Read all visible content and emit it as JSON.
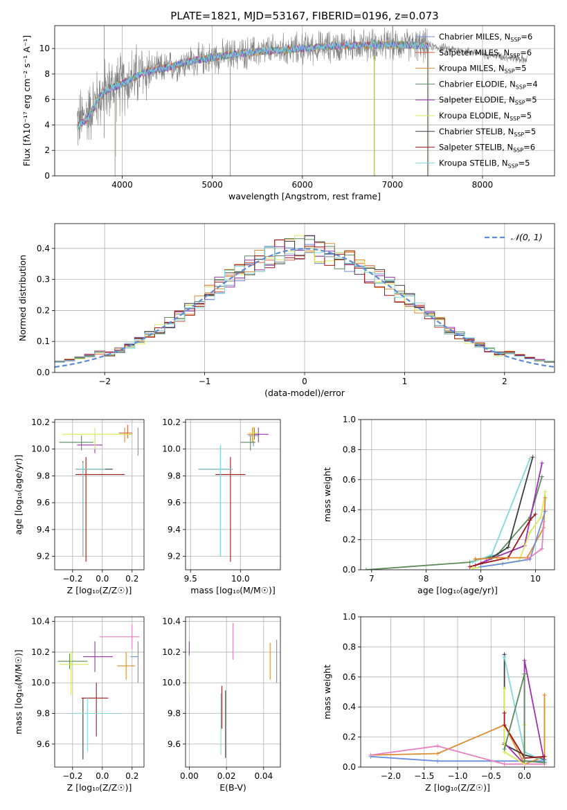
{
  "colors": {
    "chab_miles": "#6a8ddc",
    "salp_miles": "#e15a3c",
    "krou_miles": "#de8c2e",
    "chab_elodie": "#5a8a5a",
    "salp_elodie": "#9b30b0",
    "krou_elodie": "#d8e85a",
    "chab_stelib": "#3c3c3c",
    "salp_stelib": "#a01414",
    "krou_stelib": "#80d8d8",
    "pink": "#e87fbf",
    "gray": "#808080",
    "normal": "#5b8ad8"
  },
  "chart_data": [
    {
      "id": "spectrum",
      "type": "line",
      "title": "PLATE=1821, MJD=53167, FIBERID=0196, z=0.073",
      "xlabel": "wavelength [Angstrom, rest frame]",
      "ylabel": "Flux [fλ10⁻¹⁷ erg cm⁻² s⁻¹ A⁻¹]",
      "xlim": [
        3250,
        8800
      ],
      "ylim": [
        0,
        11.8
      ],
      "xticks": [
        4000,
        5000,
        6000,
        7000,
        8000
      ],
      "yticks": [
        0,
        2,
        4,
        6,
        8,
        10
      ],
      "legend_position": "top-right",
      "legend": [
        {
          "label": "Chabrier MILES, N",
          "sub": "SSP",
          "val": "=6",
          "color": "chab_miles"
        },
        {
          "label": "Salpeter MILES, N",
          "sub": "SSP",
          "val": "=6",
          "color": "salp_miles"
        },
        {
          "label": "Kroupa MILES, N",
          "sub": "SSP",
          "val": "=5",
          "color": "krou_miles"
        },
        {
          "label": "Chabrier ELODIE, N",
          "sub": "SSP",
          "val": "=4",
          "color": "chab_elodie"
        },
        {
          "label": "Salpeter ELODIE, N",
          "sub": "SSP",
          "val": "=5",
          "color": "salp_elodie"
        },
        {
          "label": "Kroupa ELODIE, N",
          "sub": "SSP",
          "val": "=5",
          "color": "krou_elodie"
        },
        {
          "label": "Chabrier STELIB, N",
          "sub": "SSP",
          "val": "=5",
          "color": "chab_stelib"
        },
        {
          "label": "Salpeter STELIB, N",
          "sub": "SSP",
          "val": "=6",
          "color": "salp_stelib"
        },
        {
          "label": "Kroupa STELIB, N",
          "sub": "SSP",
          "val": "=5",
          "color": "krou_stelib"
        }
      ],
      "continuum": {
        "x": [
          3500,
          3600,
          3700,
          3800,
          3900,
          4000,
          4100,
          4200,
          4300,
          4500,
          4700,
          5000,
          5300,
          5600,
          6000,
          6400,
          6800,
          7200,
          7400,
          7600,
          8000,
          8500
        ],
        "y": [
          4.2,
          4.7,
          5.8,
          6.6,
          7.0,
          7.2,
          7.6,
          8.0,
          8.2,
          8.5,
          8.9,
          9.3,
          9.6,
          9.8,
          10.0,
          10.2,
          10.3,
          10.3,
          10.2,
          10.0,
          9.6,
          9.1
        ]
      },
      "model_range": [
        3500,
        7400
      ],
      "data_range": [
        3500,
        8500
      ],
      "spikes": [
        {
          "x": 3800,
          "ymax": 11.8,
          "ymin": 3.0
        },
        {
          "x": 3920,
          "ymax": 6.5,
          "ymin": 0.0
        },
        {
          "x": 5200,
          "ymax": 9.6,
          "ymin": 0.0
        },
        {
          "x": 6800,
          "ymax": 9.9,
          "ymin": 0.0
        },
        {
          "x": 7400,
          "ymax": 10.2,
          "ymin": 0.0
        }
      ]
    },
    {
      "id": "residuals",
      "type": "histogram",
      "xlabel": "(data-model)/error",
      "ylabel": "Normed distribution",
      "xlim": [
        -2.5,
        2.5
      ],
      "ylim": [
        0,
        0.48
      ],
      "xticks": [
        -2,
        -1,
        0,
        1,
        2
      ],
      "yticks": [
        0.0,
        0.1,
        0.2,
        0.3,
        0.4
      ],
      "legend": "𝒩(0, 1)",
      "legend_position": "top-right",
      "bin_width": 0.1,
      "normal": {
        "mean": 0.0,
        "sigma": 1.0
      },
      "series_colors": [
        "chab_miles",
        "salp_miles",
        "krou_miles",
        "chab_elodie",
        "salp_elodie",
        "krou_elodie",
        "chab_stelib",
        "salp_stelib",
        "krou_stelib"
      ]
    },
    {
      "id": "age_vs_Z",
      "type": "errorbar",
      "xlabel": "Z [log₁₀(Z/Z☉)]",
      "ylabel": "age  [log₁₀(age/yr)]",
      "xlim": [
        -0.32,
        0.28
      ],
      "ylim": [
        9.1,
        10.22
      ],
      "xticks": [
        -0.2,
        0.0,
        0.2
      ],
      "yticks": [
        9.2,
        9.4,
        9.6,
        9.8,
        10.0,
        10.2
      ],
      "points": [
        {
          "x": 0.24,
          "xe": [
            0.0,
            0.0
          ],
          "y": 10.1,
          "ye": [
            0.15,
            0.06
          ],
          "c": "chab_miles"
        },
        {
          "x": 0.17,
          "xe": [
            0.06,
            0.03
          ],
          "y": 10.12,
          "ye": [
            0.04,
            0.06
          ],
          "c": "salp_miles"
        },
        {
          "x": 0.15,
          "xe": [
            0.03,
            0.05
          ],
          "y": 10.11,
          "ye": [
            0.06,
            0.05
          ],
          "c": "krou_miles"
        },
        {
          "x": -0.14,
          "xe": [
            0.15,
            0.08
          ],
          "y": 10.05,
          "ye": [
            0.06,
            0.05
          ],
          "c": "chab_elodie"
        },
        {
          "x": -0.05,
          "xe": [
            0.12,
            0.05
          ],
          "y": 10.03,
          "ye": [
            0.06,
            0.08
          ],
          "c": "salp_elodie"
        },
        {
          "x": -0.05,
          "xe": [
            0.22,
            0.25
          ],
          "y": 10.11,
          "ye": [
            0.11,
            0.05
          ],
          "c": "krou_elodie"
        },
        {
          "x": -0.13,
          "xe": [
            0.05,
            0.2
          ],
          "y": 9.85,
          "ye": [
            0.65,
            0.06
          ],
          "c": "chab_stelib"
        },
        {
          "x": -0.11,
          "xe": [
            0.07,
            0.26
          ],
          "y": 9.81,
          "ye": [
            0.65,
            0.13
          ],
          "c": "salp_stelib"
        },
        {
          "x": -0.13,
          "xe": [
            0.05,
            0.15
          ],
          "y": 9.85,
          "ye": [
            0.65,
            0.05
          ],
          "c": "krou_stelib"
        }
      ]
    },
    {
      "id": "age_vs_mass",
      "type": "errorbar",
      "xlabel": "mass [log₁₀(M/M☉)]",
      "ylabel": "",
      "xlim": [
        9.45,
        10.4
      ],
      "ylim": [
        9.1,
        10.22
      ],
      "xticks": [
        9.5,
        10.0
      ],
      "yticks": [
        9.2,
        9.4,
        9.6,
        9.8,
        10.0,
        10.2
      ],
      "points": [
        {
          "x": 10.13,
          "xe": [
            0.05,
            0.05
          ],
          "y": 10.1,
          "ye": [
            0.08,
            0.06
          ],
          "c": "chab_miles"
        },
        {
          "x": 10.14,
          "xe": [
            0.05,
            0.05
          ],
          "y": 10.11,
          "ye": [
            0.04,
            0.05
          ],
          "c": "salp_miles"
        },
        {
          "x": 10.12,
          "xe": [
            0.05,
            0.05
          ],
          "y": 10.11,
          "ye": [
            0.06,
            0.05
          ],
          "c": "krou_miles"
        },
        {
          "x": 10.1,
          "xe": [
            0.1,
            0.05
          ],
          "y": 10.05,
          "ye": [
            0.06,
            0.05
          ],
          "c": "chab_elodie"
        },
        {
          "x": 10.18,
          "xe": [
            0.05,
            0.1
          ],
          "y": 10.11,
          "ye": [
            0.06,
            0.05
          ],
          "c": "salp_elodie"
        },
        {
          "x": 10.13,
          "xe": [
            0.05,
            0.05
          ],
          "y": 10.12,
          "ye": [
            0.06,
            0.05
          ],
          "c": "krou_elodie"
        },
        {
          "x": 9.8,
          "xe": [
            0.22,
            0.12
          ],
          "y": 9.85,
          "ye": [
            0.65,
            0.18
          ],
          "c": "chab_stelib"
        },
        {
          "x": 9.9,
          "xe": [
            0.15,
            0.15
          ],
          "y": 9.81,
          "ye": [
            0.65,
            0.13
          ],
          "c": "salp_stelib"
        },
        {
          "x": 9.8,
          "xe": [
            0.22,
            0.12
          ],
          "y": 9.85,
          "ye": [
            0.65,
            0.18
          ],
          "c": "krou_stelib"
        }
      ]
    },
    {
      "id": "mw_vs_age",
      "type": "line",
      "xlabel": "age  [log₁₀(age/yr)]",
      "ylabel": "mass weight",
      "xlim": [
        6.8,
        10.35
      ],
      "ylim": [
        0,
        1.0
      ],
      "xticks": [
        7,
        8,
        9,
        10
      ],
      "yticks": [
        0.0,
        0.2,
        0.4,
        0.6,
        0.8,
        1.0
      ],
      "series": [
        {
          "c": "chab_elodie",
          "x": [
            6.9,
            8.8,
            9.3,
            9.9,
            10.12
          ],
          "y": [
            0.0,
            0.05,
            0.1,
            0.35,
            0.62
          ]
        },
        {
          "c": "chab_stelib",
          "x": [
            8.9,
            9.2,
            9.5,
            9.95
          ],
          "y": [
            0.07,
            0.08,
            0.15,
            0.75
          ]
        },
        {
          "c": "krou_stelib",
          "x": [
            8.85,
            9.2,
            9.9
          ],
          "y": [
            0.05,
            0.1,
            0.74
          ]
        },
        {
          "c": "salp_elodie",
          "x": [
            8.9,
            9.1,
            9.8,
            10.12
          ],
          "y": [
            0.03,
            0.06,
            0.16,
            0.71
          ]
        },
        {
          "c": "salp_stelib",
          "x": [
            8.8,
            9.0,
            9.5,
            9.9,
            10.0
          ],
          "y": [
            0.02,
            0.04,
            0.08,
            0.33,
            0.37
          ]
        },
        {
          "c": "krou_elodie",
          "x": [
            8.85,
            9.7,
            9.9,
            10.1,
            10.18
          ],
          "y": [
            0.01,
            0.06,
            0.25,
            0.35,
            0.52
          ]
        },
        {
          "c": "krou_miles",
          "x": [
            8.9,
            9.3,
            9.85,
            10.15,
            10.18
          ],
          "y": [
            0.07,
            0.08,
            0.08,
            0.28,
            0.48
          ]
        },
        {
          "c": "chab_miles",
          "x": [
            9.0,
            9.4,
            9.9,
            10.18
          ],
          "y": [
            0.02,
            0.04,
            0.07,
            0.39
          ]
        },
        {
          "c": "pink",
          "x": [
            9.85,
            10.12,
            10.15
          ],
          "y": [
            0.07,
            0.14,
            0.32
          ]
        }
      ]
    },
    {
      "id": "mass_vs_Z",
      "type": "errorbar",
      "xlabel": "Z [log₁₀(Z/Z☉)]",
      "ylabel": "mass [log₁₀(M/M☉)]",
      "xlim": [
        -0.32,
        0.28
      ],
      "ylim": [
        9.45,
        10.43
      ],
      "xticks": [
        -0.2,
        0.0,
        0.2
      ],
      "yticks": [
        9.6,
        9.8,
        10.0,
        10.2,
        10.4
      ],
      "points": [
        {
          "x": 0.24,
          "xe": [
            0.05,
            0.0
          ],
          "y": 10.17,
          "ye": [
            0.17,
            0.1
          ],
          "c": "chab_miles"
        },
        {
          "x": 0.2,
          "xe": [
            0.22,
            0.05
          ],
          "y": 10.3,
          "ye": [
            0.08,
            0.08
          ],
          "c": "pink"
        },
        {
          "x": 0.16,
          "xe": [
            0.06,
            0.06
          ],
          "y": 10.11,
          "ye": [
            0.09,
            0.09
          ],
          "c": "krou_miles"
        },
        {
          "x": -0.22,
          "xe": [
            0.08,
            0.12
          ],
          "y": 10.14,
          "ye": [
            0.05,
            0.05
          ],
          "c": "chab_elodie"
        },
        {
          "x": -0.05,
          "xe": [
            0.08,
            0.12
          ],
          "y": 10.17,
          "ye": [
            0.1,
            0.1
          ],
          "c": "salp_elodie"
        },
        {
          "x": -0.21,
          "xe": [
            0.08,
            0.12
          ],
          "y": 10.12,
          "ye": [
            0.2,
            0.08
          ],
          "c": "krou_elodie"
        },
        {
          "x": -0.13,
          "xe": [
            0.08,
            0.08
          ],
          "y": 9.8,
          "ye": [
            0.3,
            0.1
          ],
          "c": "chab_stelib"
        },
        {
          "x": -0.04,
          "xe": [
            0.1,
            0.08
          ],
          "y": 9.9,
          "ye": [
            0.25,
            0.1
          ],
          "c": "salp_stelib"
        },
        {
          "x": -0.1,
          "xe": [
            0.12,
            0.22
          ],
          "y": 9.8,
          "ye": [
            0.25,
            0.1
          ],
          "c": "krou_stelib"
        }
      ]
    },
    {
      "id": "mass_vs_ebv",
      "type": "errorbar",
      "xlabel": "E(B-V)",
      "ylabel": "",
      "xlim": [
        -0.002,
        0.049
      ],
      "ylim": [
        9.45,
        10.43
      ],
      "xticks": [
        0.0,
        0.02,
        0.04
      ],
      "yticks": [
        9.6,
        9.8,
        10.0,
        10.2,
        10.4
      ],
      "points": [
        {
          "x": 0.0,
          "y": 10.22,
          "ye": [
            0.05,
            0.05
          ],
          "c": "salp_elodie"
        },
        {
          "x": 0.0,
          "y": 10.08,
          "ye": [
            0.16,
            0.1
          ],
          "c": "krou_elodie"
        },
        {
          "x": 0.017,
          "y": 9.73,
          "ye": [
            0.2,
            0.2
          ],
          "c": "krou_stelib"
        },
        {
          "x": 0.0175,
          "y": 9.8,
          "ye": [
            0.1,
            0.18
          ],
          "c": "salp_stelib"
        },
        {
          "x": 0.0195,
          "y": 9.73,
          "ye": [
            0.22,
            0.22
          ],
          "c": "chab_stelib"
        },
        {
          "x": 0.0235,
          "y": 10.27,
          "ye": [
            0.12,
            0.12
          ],
          "c": "pink"
        },
        {
          "x": 0.0435,
          "y": 10.14,
          "ye": [
            0.12,
            0.12
          ],
          "c": "krou_miles"
        },
        {
          "x": 0.047,
          "y": 10.14,
          "ye": [
            0.14,
            0.14
          ],
          "c": "chab_miles"
        }
      ]
    },
    {
      "id": "mw_vs_Z",
      "type": "line",
      "xlabel": "Z [log₁₀(Z/Z☉)]",
      "ylabel": "mass weight",
      "xlim": [
        -2.45,
        0.45
      ],
      "ylim": [
        0,
        1.0
      ],
      "xticks": [
        -2.0,
        -1.5,
        -1.0,
        -0.5,
        0.0
      ],
      "yticks": [
        0.0,
        0.2,
        0.4,
        0.6,
        0.8,
        1.0
      ],
      "series": [
        {
          "c": "chab_miles",
          "x": [
            -2.3,
            -1.3,
            0.0,
            0.3
          ],
          "y": [
            0.07,
            0.04,
            0.04,
            0.04
          ]
        },
        {
          "c": "krou_miles",
          "x": [
            -2.3,
            -1.3,
            -0.3,
            0.0,
            0.3,
            0.3
          ],
          "y": [
            0.08,
            0.09,
            0.28,
            0.02,
            0.07,
            0.48
          ]
        },
        {
          "c": "pink",
          "x": [
            -2.3,
            -1.3,
            -0.3,
            0.0,
            0.3
          ],
          "y": [
            0.08,
            0.14,
            0.02,
            0.02,
            0.02
          ]
        },
        {
          "c": "chab_stelib",
          "x": [
            -0.3,
            -0.3,
            0.0,
            0.3
          ],
          "y": [
            0.75,
            0.15,
            0.08,
            0.05
          ]
        },
        {
          "c": "krou_stelib",
          "x": [
            -0.3,
            0.0,
            0.3
          ],
          "y": [
            0.73,
            0.1,
            0.04
          ]
        },
        {
          "c": "salp_elodie",
          "x": [
            -0.3,
            0.0,
            0.0,
            0.3
          ],
          "y": [
            0.16,
            0.02,
            0.71,
            0.03
          ]
        },
        {
          "c": "krou_elodie",
          "x": [
            -0.3,
            -0.3,
            0.0,
            0.0
          ],
          "y": [
            0.52,
            0.1,
            0.02,
            0.28
          ]
        },
        {
          "c": "salp_stelib",
          "x": [
            -0.3,
            -0.3,
            0.0,
            0.3
          ],
          "y": [
            0.36,
            0.28,
            0.06,
            0.07
          ]
        },
        {
          "c": "chab_elodie",
          "x": [
            -0.3,
            0.0,
            0.0,
            0.3
          ],
          "y": [
            0.12,
            0.62,
            0.04,
            0.03
          ]
        }
      ]
    }
  ]
}
